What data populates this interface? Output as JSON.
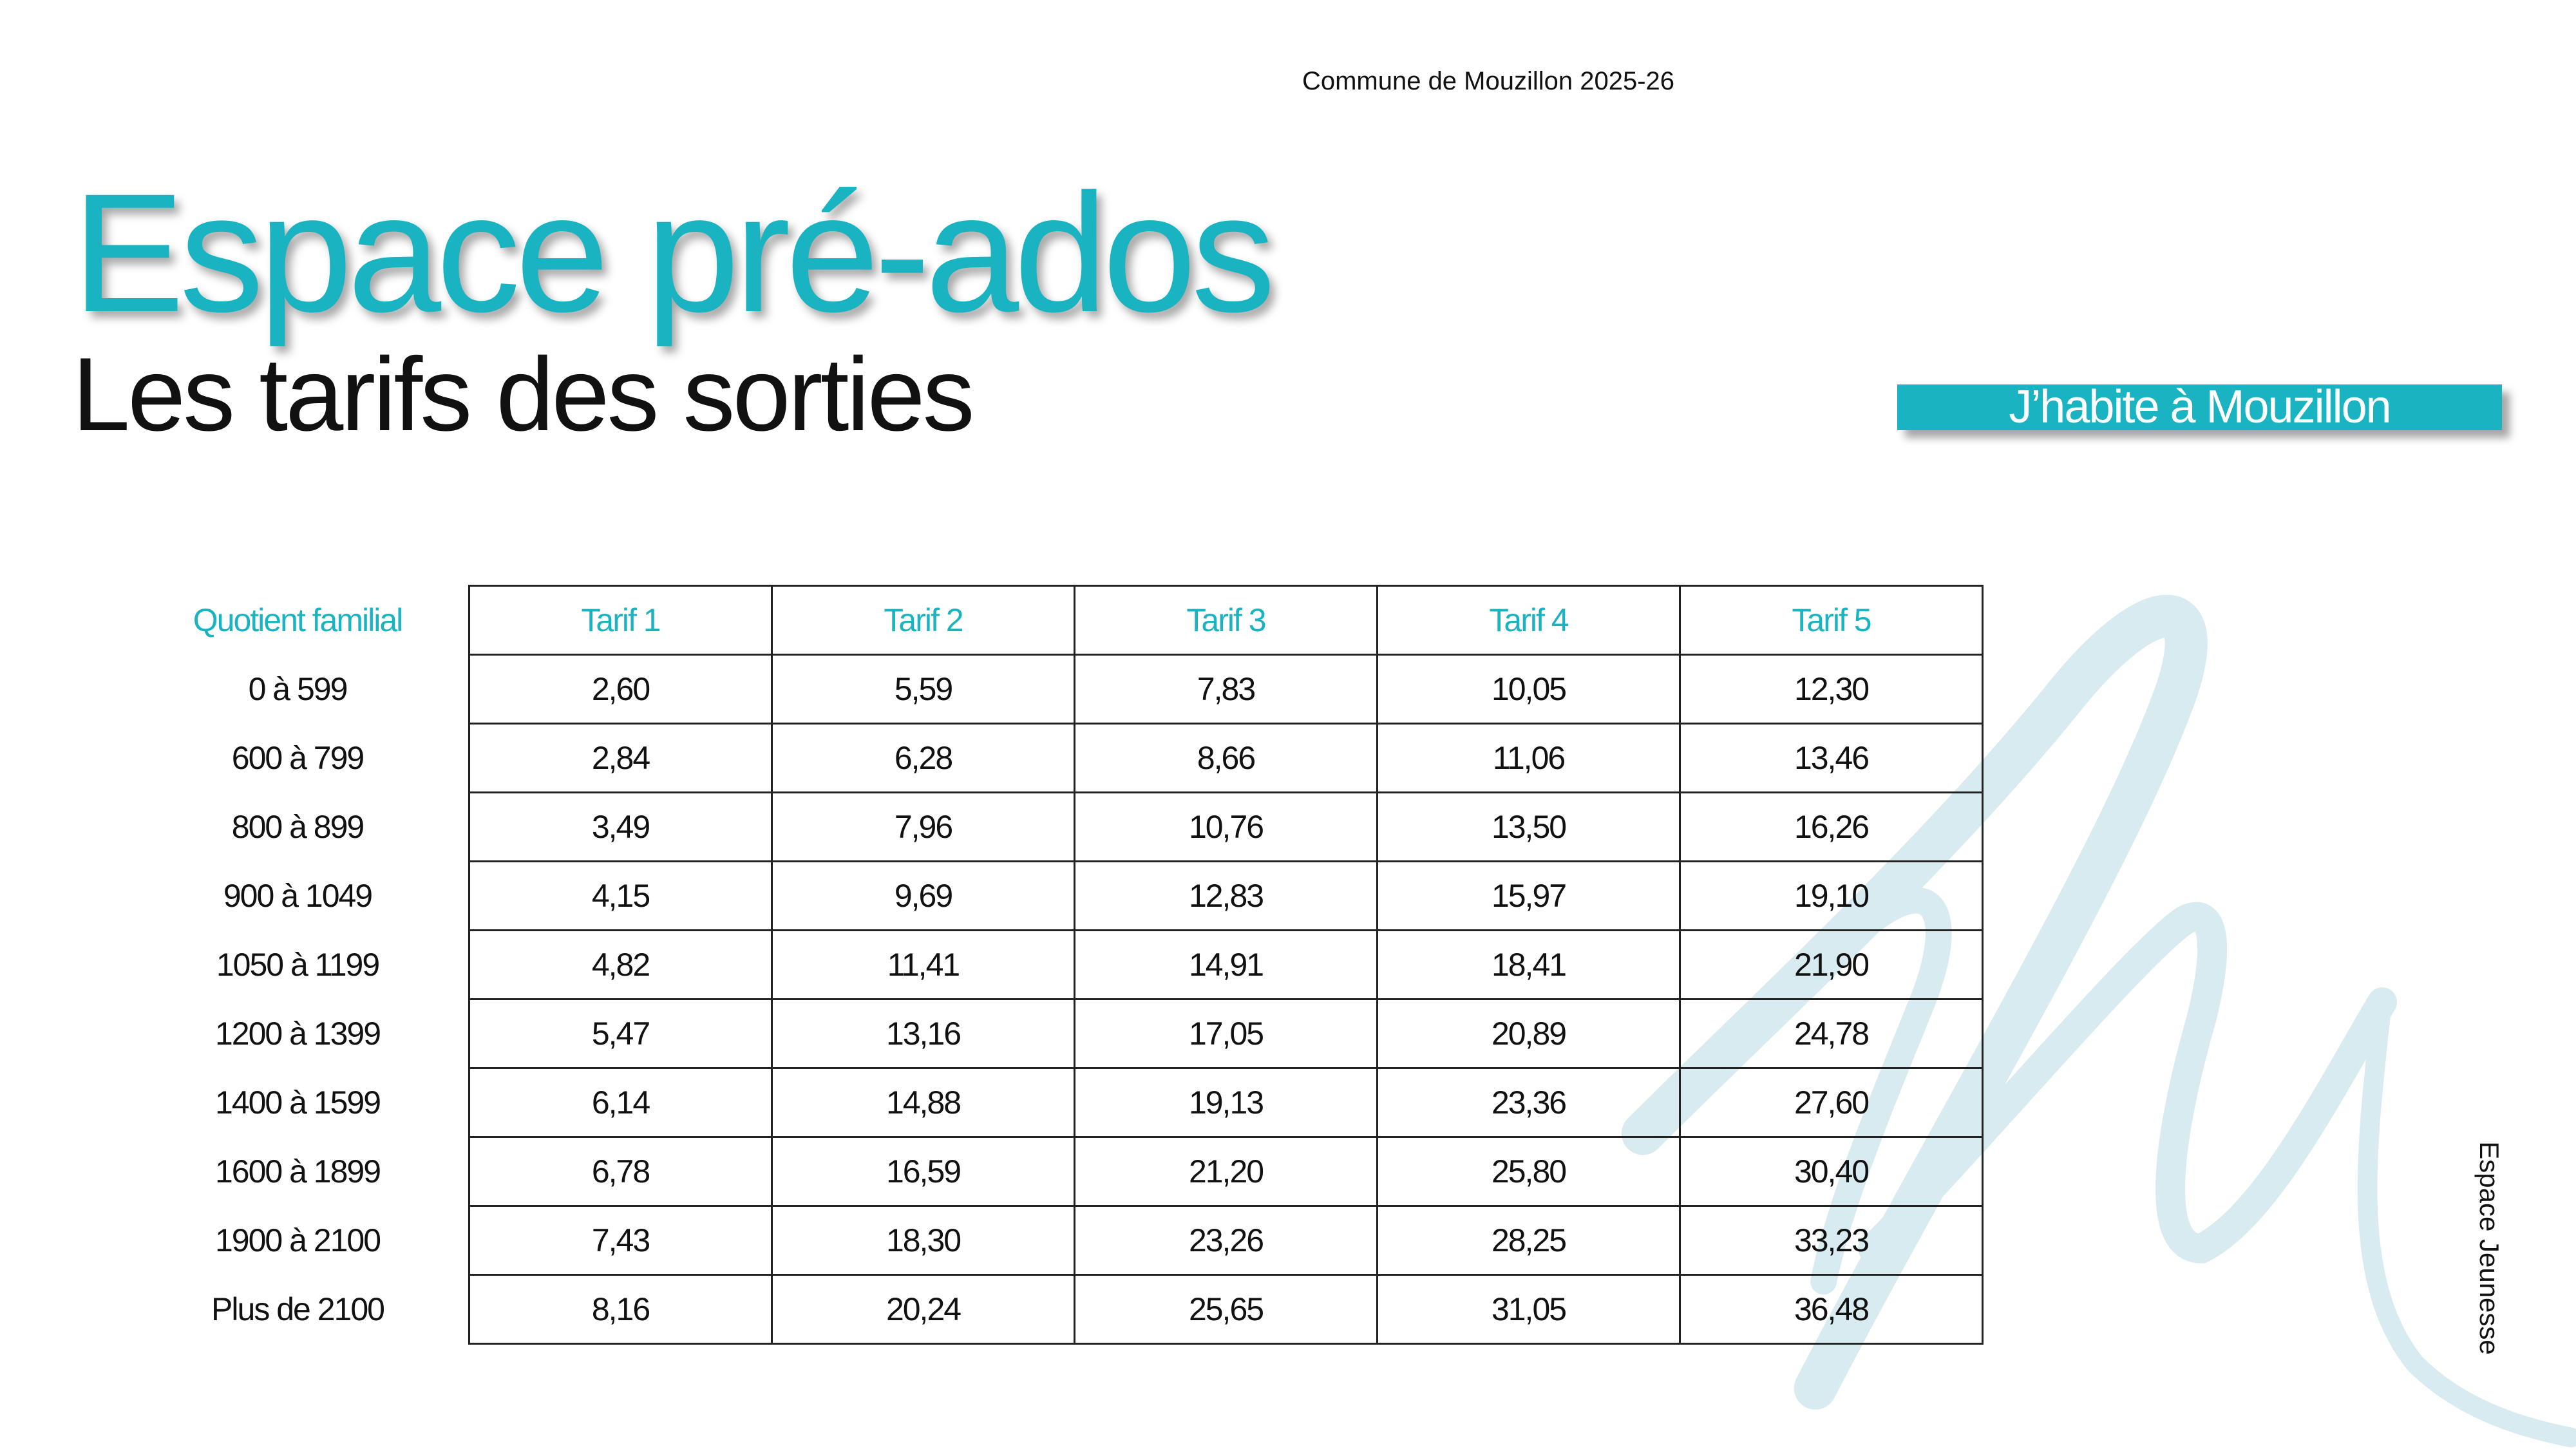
{
  "header": "Commune de Mouzillon 2025-26",
  "title": "Espace pré-ados",
  "subtitle": "Les tarifs des sorties",
  "badge": "J’habite à Mouzillon",
  "table": {
    "columns": [
      "Quotient familial",
      "Tarif 1",
      "Tarif 2",
      "Tarif 3",
      "Tarif 4",
      "Tarif 5"
    ],
    "rows": [
      [
        "0 à 599",
        "2,60",
        "5,59",
        "7,83",
        "10,05",
        "12,30"
      ],
      [
        "600 à 799",
        "2,84",
        "6,28",
        "8,66",
        "11,06",
        "13,46"
      ],
      [
        "800 à 899",
        "3,49",
        "7,96",
        "10,76",
        "13,50",
        "16,26"
      ],
      [
        "900 à 1049",
        "4,15",
        "9,69",
        "12,83",
        "15,97",
        "19,10"
      ],
      [
        "1050 à 1199",
        "4,82",
        "11,41",
        "14,91",
        "18,41",
        "21,90"
      ],
      [
        "1200 à 1399",
        "5,47",
        "13,16",
        "17,05",
        "20,89",
        "24,78"
      ],
      [
        "1400 à 1599",
        "6,14",
        "14,88",
        "19,13",
        "23,36",
        "27,60"
      ],
      [
        "1600 à 1899",
        "6,78",
        "16,59",
        "21,20",
        "25,80",
        "30,40"
      ],
      [
        "1900 à 2100",
        "7,43",
        "18,30",
        "23,26",
        "28,25",
        "33,23"
      ],
      [
        "Plus de 2100",
        "8,16",
        "20,24",
        "25,65",
        "31,05",
        "36,48"
      ]
    ]
  },
  "side_label": "Espace Jeunesse"
}
